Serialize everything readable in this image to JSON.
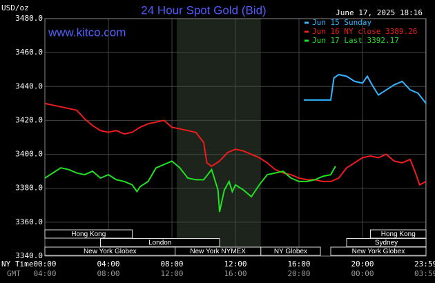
{
  "chart_data": {
    "type": "line",
    "title": "24 Hour Spot Gold (Bid)",
    "timestamp": "June 17, 2025 18:16",
    "watermark": "www.kitco.com",
    "y_label": "USD/oz",
    "x_label": "NY Time",
    "x2_label": "GMT",
    "xlim": [
      0,
      24
    ],
    "ylim": [
      3340,
      3480
    ],
    "yticks": [
      {
        "value": 3340,
        "label": "3340.0"
      },
      {
        "value": 3360,
        "label": "3360.0"
      },
      {
        "value": 3380,
        "label": "3380.0"
      },
      {
        "value": 3400,
        "label": "3400.0"
      },
      {
        "value": 3420,
        "label": "3420.0"
      },
      {
        "value": 3440,
        "label": "3440.0"
      },
      {
        "value": 3460,
        "label": "3460.0"
      },
      {
        "value": 3480,
        "label": "3480.0"
      }
    ],
    "xticks": [
      {
        "value": 0,
        "label": "00:00"
      },
      {
        "value": 4,
        "label": "04:00"
      },
      {
        "value": 8,
        "label": "08:00"
      },
      {
        "value": 12,
        "label": "12:00"
      },
      {
        "value": 16,
        "label": "16:00"
      },
      {
        "value": 20,
        "label": "20:00"
      },
      {
        "value": 23.98,
        "label": "23:59"
      }
    ],
    "x2ticks": [
      {
        "value": 0,
        "label": "04:00"
      },
      {
        "value": 4,
        "label": "08:00"
      },
      {
        "value": 8,
        "label": "12:00"
      },
      {
        "value": 12,
        "label": "16:00"
      },
      {
        "value": 16,
        "label": "20:00"
      },
      {
        "value": 20,
        "label": "00:00"
      },
      {
        "value": 23.98,
        "label": "03:59"
      }
    ],
    "grid": true,
    "shaded": [
      8.3,
      13.6
    ],
    "sessions": [
      {
        "label": "Hong Kong",
        "start": 0,
        "end": 5.5,
        "row": 0
      },
      {
        "label": "Hong Kong",
        "start": 20.5,
        "end": 24,
        "row": 0
      },
      {
        "label": "London",
        "start": 3.5,
        "end": 11,
        "row": 1
      },
      {
        "label": "Sydney",
        "start": 19,
        "end": 24,
        "row": 1
      },
      {
        "label": "New York Globex",
        "start": 0,
        "end": 8.2,
        "row": 2
      },
      {
        "label": "New York NYMEX",
        "start": 8.2,
        "end": 13.6,
        "row": 2
      },
      {
        "label": "NY Globex",
        "start": 13.6,
        "end": 17.35,
        "row": 2
      },
      {
        "label": "New York Globex",
        "start": 18,
        "end": 24,
        "row": 2
      }
    ],
    "series": [
      {
        "name": "Jun 15 Sunday",
        "color": "#33b5ff",
        "x": [
          16.3,
          17,
          17.2,
          18,
          18.2,
          18.5,
          19,
          19.5,
          20,
          20.3,
          20.6,
          21,
          21.5,
          22,
          22.5,
          23,
          23.5,
          24
        ],
        "values": [
          3432,
          3432,
          3432,
          3432,
          3445,
          3447,
          3446,
          3443,
          3442,
          3446,
          3441,
          3435,
          3438,
          3441,
          3443,
          3438,
          3436,
          3430
        ]
      },
      {
        "name": "Jun 16 NY close 3389.26",
        "color": "#ee1c1c",
        "x": [
          0,
          0.5,
          1,
          1.5,
          2,
          2.5,
          3,
          3.5,
          4,
          4.5,
          5,
          5.5,
          6,
          6.5,
          7,
          7.5,
          8,
          8.5,
          9,
          9.5,
          10,
          10.2,
          10.5,
          11,
          11.5,
          12,
          12.5,
          13,
          13.5,
          14,
          14.5,
          15,
          15.5,
          16,
          16.5,
          17,
          17.5,
          18,
          18.5,
          19,
          19.5,
          20,
          20.5,
          21,
          21.5,
          22,
          22.5,
          23,
          23.3,
          23.6,
          24
        ],
        "values": [
          3430,
          3429,
          3428,
          3427,
          3426,
          3421,
          3417,
          3414,
          3413,
          3414,
          3412,
          3413,
          3416,
          3418,
          3419,
          3420,
          3416,
          3415,
          3414,
          3413,
          3407,
          3395,
          3393,
          3396,
          3401,
          3403,
          3402,
          3400,
          3398,
          3395,
          3391,
          3389,
          3388,
          3386,
          3385,
          3385,
          3384,
          3384,
          3386,
          3392,
          3395,
          3398,
          3399,
          3398,
          3400,
          3396,
          3395,
          3397,
          3390,
          3382,
          3384
        ]
      },
      {
        "name": "Jun 17 Last 3392.17",
        "color": "#22e022",
        "x": [
          0,
          0.5,
          1,
          1.5,
          2,
          2.5,
          3,
          3.5,
          4,
          4.5,
          5,
          5.5,
          5.8,
          6,
          6.5,
          7,
          7.5,
          8,
          8.5,
          9,
          9.5,
          10,
          10.5,
          10.9,
          11,
          11.3,
          11.6,
          11.8,
          12,
          12.5,
          13,
          13.5,
          14,
          14.5,
          15,
          15.5,
          16,
          16.5,
          17,
          17.5,
          18,
          18.3
        ],
        "values": [
          3386,
          3389,
          3392,
          3391,
          3389,
          3388,
          3390,
          3386,
          3388,
          3385,
          3384,
          3382,
          3378,
          3381,
          3384,
          3392,
          3394,
          3396,
          3392,
          3386,
          3385,
          3385,
          3391,
          3379,
          3366,
          3379,
          3384,
          3378,
          3382,
          3379,
          3375,
          3382,
          3388,
          3389,
          3390,
          3386,
          3384,
          3384,
          3385,
          3387,
          3388,
          3393
        ]
      }
    ]
  }
}
